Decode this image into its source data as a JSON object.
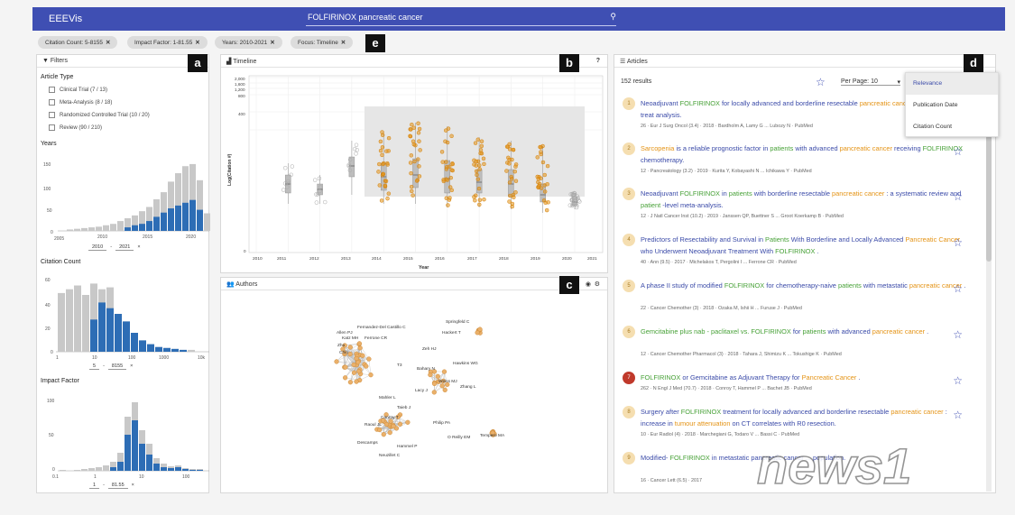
{
  "header": {
    "app_title": "EEEVis",
    "search_query": "FOLFIRINOX pancreatic cancer",
    "search_icon": "search-icon"
  },
  "chips": [
    "Citation Count: 5-8155",
    "Impact Factor: 1-81.55",
    "Years: 2010-2021",
    "Focus: Timeline"
  ],
  "tags": {
    "a": "a",
    "b": "b",
    "c": "c",
    "d": "d",
    "e": "e"
  },
  "filters": {
    "title": "Filters",
    "article_type_title": "Article Type",
    "article_types": [
      "Clinical Trial (7 / 13)",
      "Meta-Analysis (8 / 18)",
      "Randomized Controlled Trial (10 / 20)",
      "Review (90 / 210)"
    ],
    "years_title": "Years",
    "years_ticks": [
      "2005",
      "2010",
      "2015",
      "2020"
    ],
    "years_yticks": [
      "150",
      "100",
      "50",
      "0"
    ],
    "years_range": {
      "from": "2010",
      "to": "2021",
      "sep": "-",
      "clear": "×"
    },
    "citation_title": "Citation Count",
    "citation_ticks": [
      "1",
      "10",
      "100",
      "1000",
      "10k"
    ],
    "citation_yticks": [
      "60",
      "40",
      "20",
      "0"
    ],
    "citation_range": {
      "from": "5",
      "to": "8155",
      "sep": "-",
      "clear": "×"
    },
    "impact_title": "Impact Factor",
    "impact_ticks": [
      "0.1",
      "1",
      "10",
      "100"
    ],
    "impact_yticks": [
      "100",
      "50",
      "0"
    ],
    "impact_range": {
      "from": "1",
      "to": "81.55",
      "sep": "-",
      "clear": "×"
    }
  },
  "timeline": {
    "title": "Timeline",
    "help": "?",
    "ylabel": "Log(Citation #)",
    "xlabel": "Year",
    "yticks": [
      "2,000",
      "1,600",
      "1,200",
      "800",
      "400",
      "0"
    ],
    "xticks": [
      "2010",
      "2011",
      "2012",
      "2013",
      "2014",
      "2015",
      "2016",
      "2017",
      "2018",
      "2019",
      "2020",
      "2021"
    ]
  },
  "authors": {
    "title": "Authors",
    "names": [
      "Springfeld C",
      "Hackert T",
      "Fernandez-Del Castillo C",
      "Ferrone CR",
      "Allen PJ",
      "Katz MH",
      "Zhu",
      "Chin",
      "T3",
      "Zeh HJ",
      "Hawkins WG",
      "Bahary N",
      "Weiss MJ",
      "Zhang L",
      "Lacy J",
      "Mahler L",
      "Taieb J",
      "Conroy T",
      "Raoul JL",
      "Philip PA",
      "Tempero MA",
      "O Reilly EM",
      "Descamps",
      "Hammel P",
      "Neuzillet C"
    ]
  },
  "articles": {
    "title": "Articles",
    "count": "152 results",
    "per_page": "Per Page: 10",
    "sort_options": [
      "Relevance",
      "Publication Date",
      "Citation Count"
    ],
    "items": [
      {
        "n": "1",
        "meta": "26 · Eur J Surg Oncol (3.4) · 2018 · Bardholm A, Lamy G ... Lubozy N · PubMed"
      },
      {
        "n": "2",
        "meta": "12 · Pancreatology (3.2) · 2019 · Kurita Y, Kobayashi N ... Ichikawa Y · PubMed"
      },
      {
        "n": "3",
        "meta": "12 · J Natl Cancer Inst (10.2) · 2019 · Janssen QP, Buettner S ... Groot Koerkamp B · PubMed"
      },
      {
        "n": "4",
        "meta": "40 · Ann (9.5) · 2017 · Michelakos T, Pergolini I ... Ferrone CR · PubMed"
      },
      {
        "n": "5",
        "meta": "22 · Cancer Chemother (3) · 2018 · Ozaka M, Ishii H ... Furuse J · PubMed"
      },
      {
        "n": "6",
        "meta": "12 · Cancer Chemother Pharmacol (3) · 2018 · Tahara J, Shimizu K ... Tokushige K · PubMed"
      },
      {
        "n": "7",
        "meta": "262 · N Engl J Med (70.7) · 2018 · Conroy T, Hammel P ... Bachet JB · PubMed"
      },
      {
        "n": "8",
        "meta": "10 · Eur Radiol (4) · 2018 · Marchegiani G, Todaro V ... Bassi C · PubMed"
      },
      {
        "n": "9",
        "meta": "16 · Cancer Lett (6.5) · 2017"
      }
    ],
    "titles": {
      "t1a": "Neoadjuvant ",
      "t1b": "FOLFIRINOX",
      "t1c": " for locally advanced and borderline resectable ",
      "t1d": "pancreatic cancer",
      "t1e": ": An intention to treat analysis.",
      "t2a": "Sarcopenia",
      "t2b": " is a reliable prognostic factor in ",
      "t2c": "patients",
      "t2d": " with advanced ",
      "t2e": "pancreatic cancer",
      "t2f": " receiving ",
      "t2g": "FOLFIRINOX",
      "t2h": " chemotherapy.",
      "t3a": "Neoadjuvant ",
      "t3b": "FOLFIRINOX",
      "t3c": " in ",
      "t3d": "patients",
      "t3e": " with borderline resectable ",
      "t3f": "pancreatic cancer",
      "t3g": " : a systematic review and ",
      "t3h": "patient",
      "t3i": " -level meta-analysis.",
      "t4a": "Predictors of Resectability and Survival in ",
      "t4b": "Patients",
      "t4c": " With Borderline and Locally Advanced ",
      "t4d": "Pancreatic Cancer",
      "t4e": " who Underwent Neoadjuvant Treatment With ",
      "t4f": "FOLFIRINOX",
      "t4g": " .",
      "t5a": "A phase II study of modified ",
      "t5b": "FOLFIRINOX",
      "t5c": " for chemotherapy-naive ",
      "t5d": "patients",
      "t5e": " with metastatic ",
      "t5f": "pancreatic cancer",
      "t5g": " .",
      "t6a": "Gemcitabine plus nab - paclitaxel vs. ",
      "t6b": "FOLFIRINOX",
      "t6c": " for ",
      "t6d": "patients",
      "t6e": " with advanced ",
      "t6f": "pancreatic cancer",
      "t6g": " .",
      "t7a": "FOLFIRINOX",
      "t7b": " or Gemcitabine as Adjuvant Therapy for ",
      "t7c": "Pancreatic Cancer",
      "t7d": " .",
      "t8a": "Surgery after ",
      "t8b": "FOLFIRINOX",
      "t8c": " treatment for locally advanced and borderline resectable ",
      "t8d": "pancreatic cancer",
      "t8e": " : increase in ",
      "t8f": "tumour attenuation",
      "t8g": " on CT correlates with R0 resection.",
      "t9a": "Modified- ",
      "t9b": "FOLFIRINOX",
      "t9c": " in metastatic pancreatic cancer ... ",
      "t9d": "population."
    }
  },
  "watermark": "news1",
  "colors": {
    "accent": "#3f4fb3",
    "orange": "#e49315",
    "green": "#47a137",
    "bar_blue": "#2d6db5",
    "bar_grey": "#c8c8c8"
  }
}
